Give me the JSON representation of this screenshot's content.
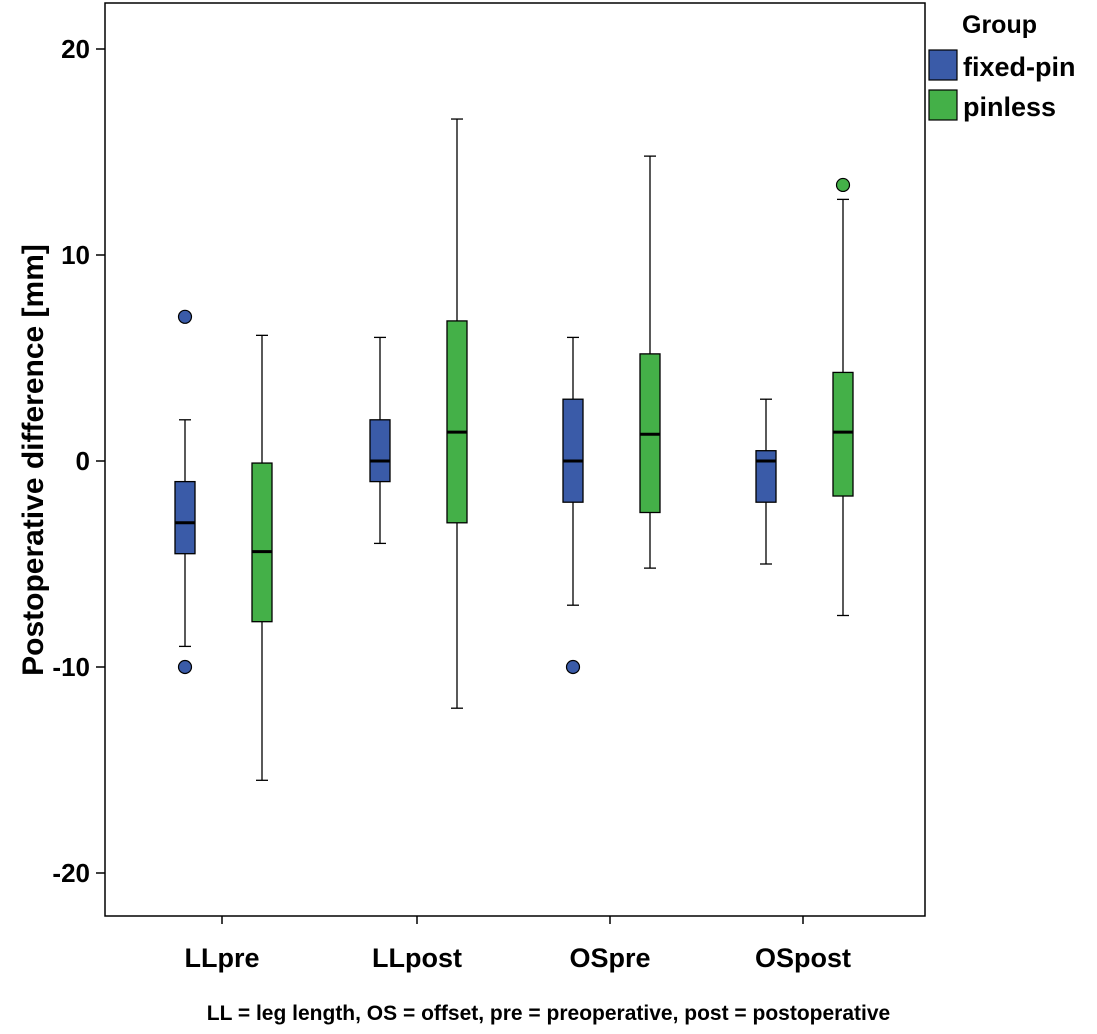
{
  "chart_data": {
    "type": "boxplot",
    "ylabel": "Postoperative difference [mm]",
    "xlabel": "",
    "ylim": [
      -22.5,
      22.5
    ],
    "yticks": [
      -20,
      -10,
      0,
      10,
      20
    ],
    "ytick_labels": [
      "-20",
      "-10",
      "0",
      "10",
      "20"
    ],
    "grid": false,
    "legend_position": "top-right",
    "legend_title": "Group",
    "categories": [
      "LLpre",
      "LLpost",
      "OSpre",
      "OSpost"
    ],
    "series": [
      {
        "name": "fixed-pin",
        "color": "#3a5ba8",
        "boxes": [
          {
            "min": -9,
            "q1": -4.5,
            "median": -3,
            "q3": -1,
            "max": 2,
            "outliers": [
              7,
              -10
            ]
          },
          {
            "min": -4,
            "q1": -1,
            "median": 0,
            "q3": 2,
            "max": 6,
            "outliers": []
          },
          {
            "min": -7,
            "q1": -2,
            "median": 0,
            "q3": 3,
            "max": 6,
            "outliers": [
              -10
            ]
          },
          {
            "min": -5,
            "q1": -2,
            "median": 0,
            "q3": 0.5,
            "max": 3,
            "outliers": []
          }
        ]
      },
      {
        "name": "pinless",
        "color": "#44b048",
        "boxes": [
          {
            "min": -15.5,
            "q1": -7.8,
            "median": -4.4,
            "q3": -0.1,
            "max": 6.1,
            "outliers": []
          },
          {
            "min": -12,
            "q1": -3,
            "median": 1.4,
            "q3": 6.8,
            "max": 16.6,
            "outliers": []
          },
          {
            "min": -5.2,
            "q1": -2.5,
            "median": 1.3,
            "q3": 5.2,
            "max": 14.8,
            "outliers": []
          },
          {
            "min": -7.5,
            "q1": -1.7,
            "median": 1.4,
            "q3": 4.3,
            "max": 12.7,
            "outliers": [
              13.4
            ]
          }
        ]
      }
    ]
  },
  "caption": "LL = leg length, OS = offset, pre = preoperative, post = postoperative"
}
